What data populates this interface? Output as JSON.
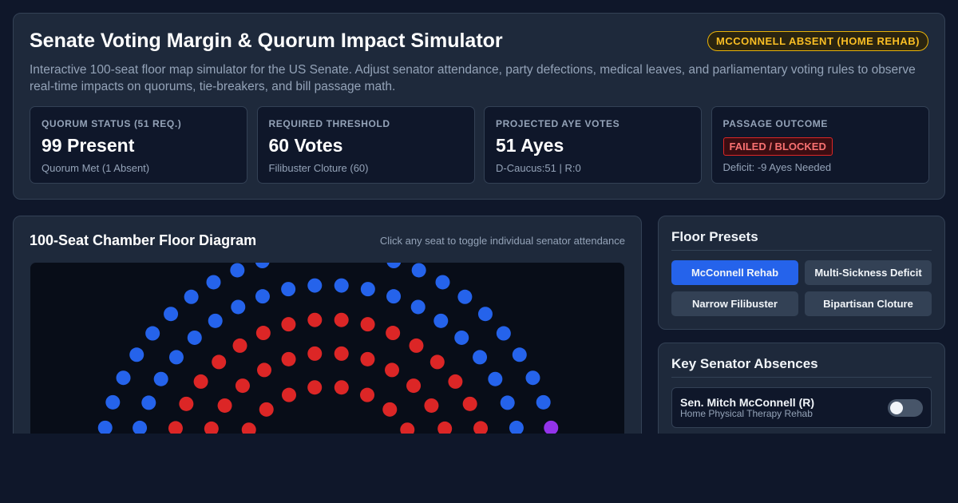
{
  "header": {
    "title": "Senate Voting Margin & Quorum Impact Simulator",
    "badge": "MCCONNELL ABSENT (HOME REHAB)",
    "description": "Interactive 100-seat floor map simulator for the US Senate. Adjust senator attendance, party defections, medical leaves, and parliamentary voting rules to observe real-time impacts on quorums, tie-breakers, and bill passage math."
  },
  "stats": [
    {
      "label": "QUORUM STATUS (51 REQ.)",
      "value": "99 Present",
      "note": "Quorum Met (1 Absent)"
    },
    {
      "label": "REQUIRED THRESHOLD",
      "value": "60 Votes",
      "note": "Filibuster Cloture (60)"
    },
    {
      "label": "PROJECTED AYE VOTES",
      "value": "51 Ayes",
      "note": "D-Caucus:51 | R:0"
    },
    {
      "label": "PASSAGE OUTCOME",
      "value": "FAILED / BLOCKED",
      "note": "Deficit: -9 Ayes Needed"
    }
  ],
  "chamber": {
    "title": "100-Seat Chamber Floor Diagram",
    "hint": "Click any seat to toggle individual senator attendance"
  },
  "presets": {
    "title": "Floor Presets",
    "buttons": [
      "McConnell Rehab",
      "Multi-Sickness Deficit",
      "Narrow Filibuster",
      "Bipartisan Cloture"
    ]
  },
  "absences": {
    "title": "Key Senator Absences",
    "items": [
      {
        "name": "Sen. Mitch McConnell (R)",
        "detail": "Home Physical Therapy Rehab"
      }
    ]
  }
}
